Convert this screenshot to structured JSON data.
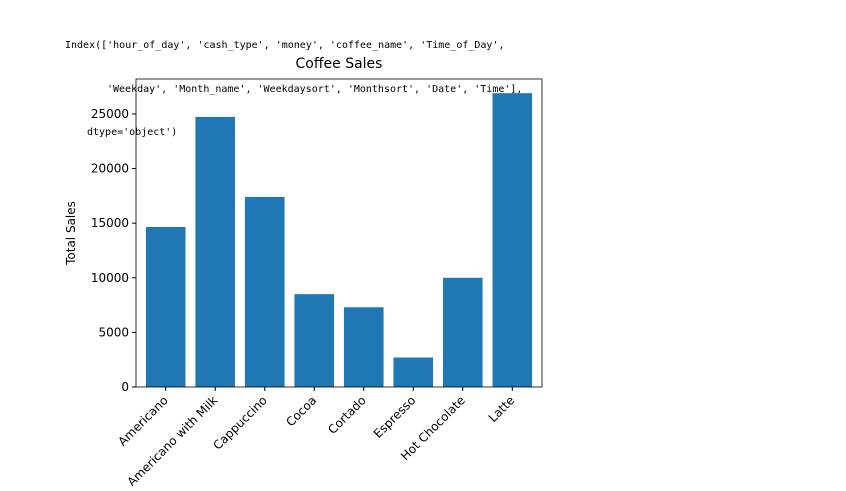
{
  "cell_output": [
    "Index(['hour_of_day', 'cash_type', 'money', 'coffee_name', 'Time_of_Day',",
    "'Weekday', 'Month_name', 'Weekdaysort', 'Monthsort', 'Date', 'Time'],",
    "dtype='object')"
  ],
  "chart_data": {
    "type": "bar",
    "title": "Coffee Sales",
    "y_label": "Total Sales",
    "categories": [
      "Americano",
      "Americano with Milk",
      "Cappuccino",
      "Cocoa",
      "Cortado",
      "Espresso",
      "Hot Chocolate",
      "Latte"
    ],
    "values": [
      14650,
      24725,
      17400,
      8500,
      7300,
      2700,
      10000,
      26900
    ],
    "color": "#1f77b4",
    "ylim": [
      0,
      28200
    ],
    "yticks": [
      0,
      5000,
      10000,
      15000,
      20000,
      25000
    ],
    "grid": false
  }
}
